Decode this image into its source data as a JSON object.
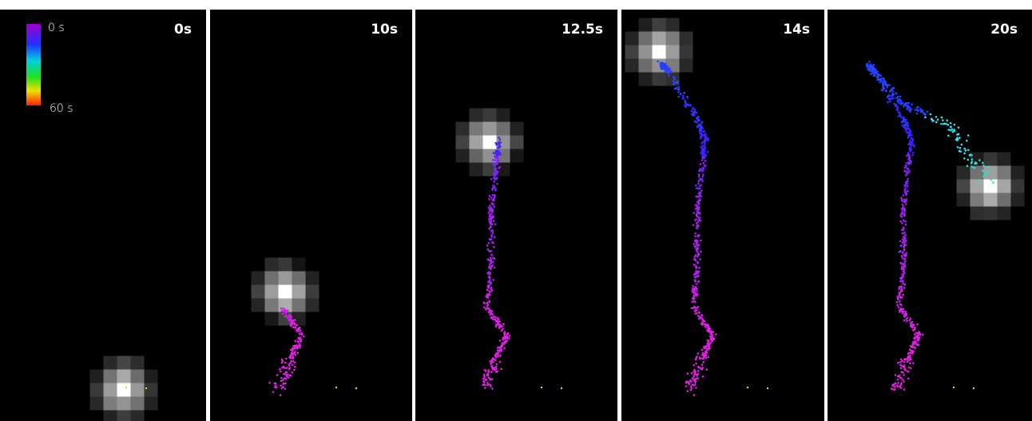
{
  "panels": [
    {
      "label": "0s"
    },
    {
      "label": "10s"
    },
    {
      "label": "12.5s"
    },
    {
      "label": "14s"
    },
    {
      "label": "20s"
    }
  ],
  "colorbar": {
    "min_label": "0 s",
    "max_label": "60 s"
  }
}
